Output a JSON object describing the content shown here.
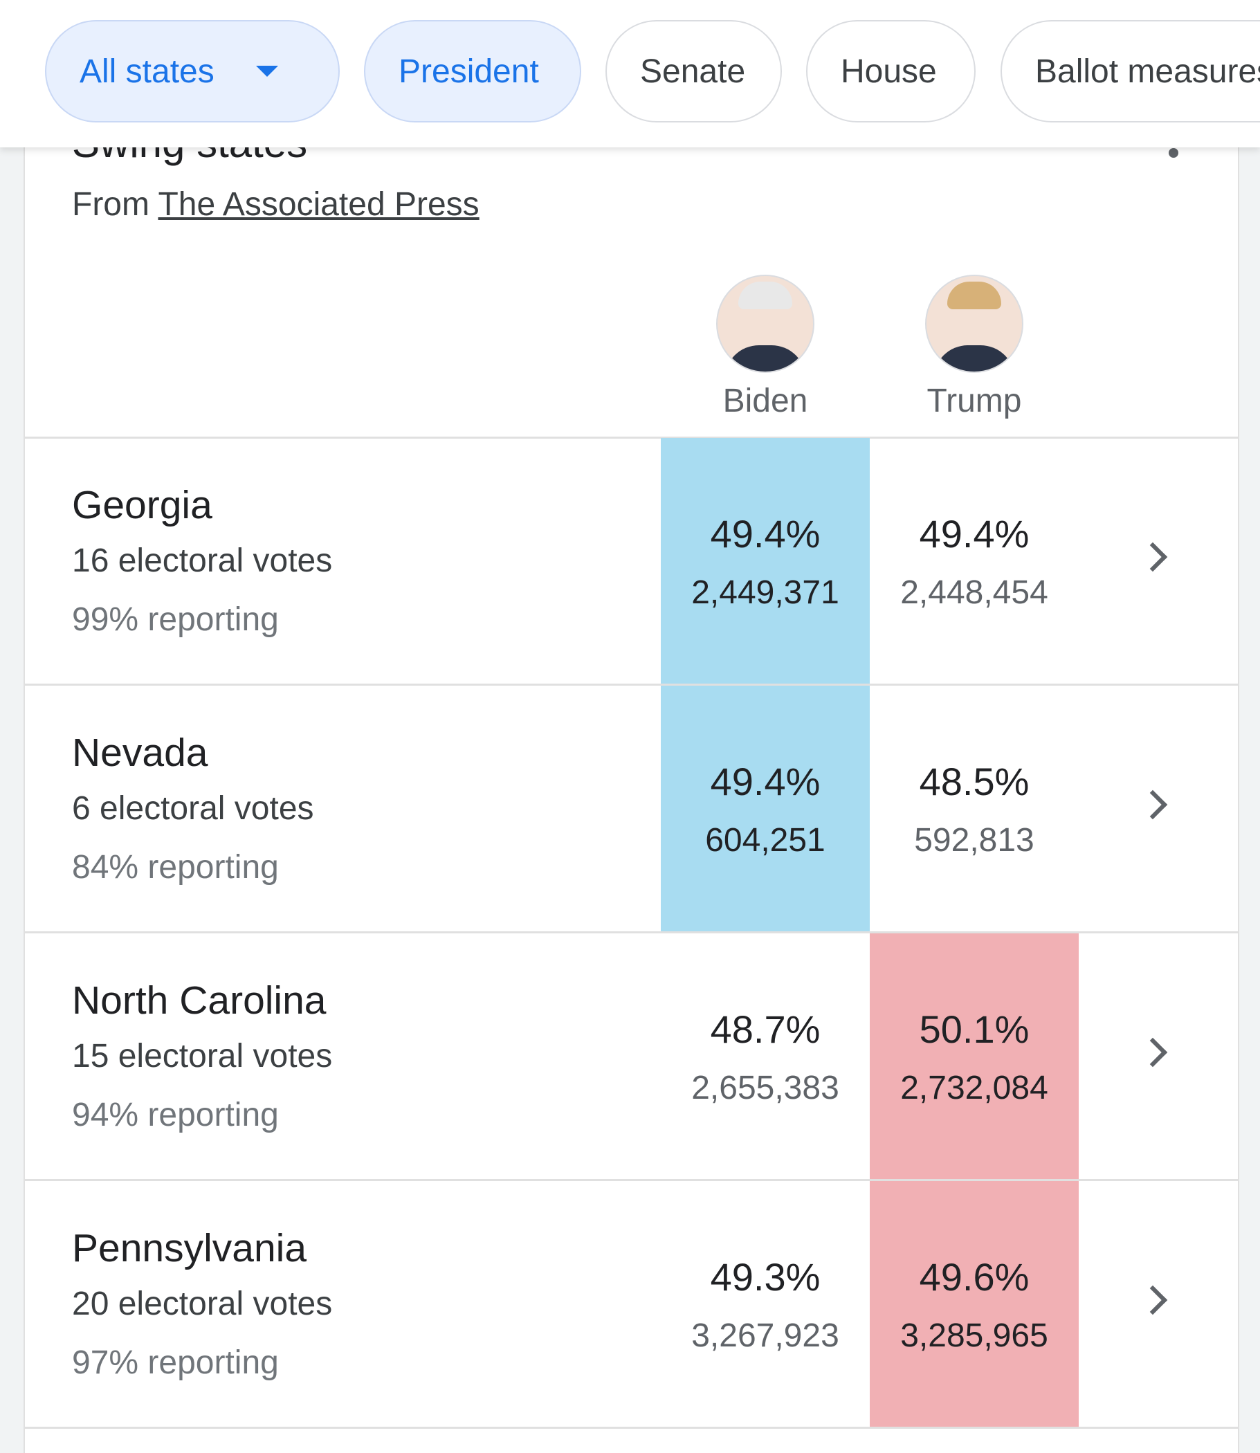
{
  "filters": {
    "chips": [
      {
        "label": "All states",
        "selected": true,
        "dropdown": true
      },
      {
        "label": "President",
        "selected": true
      },
      {
        "label": "Senate",
        "selected": false
      },
      {
        "label": "House",
        "selected": false
      },
      {
        "label": "Ballot measures",
        "selected": false
      }
    ]
  },
  "card": {
    "title": "Swing states",
    "source_prefix": "From",
    "source": "The Associated Press",
    "candidates": [
      {
        "name": "Biden",
        "color": "#a8dcf1"
      },
      {
        "name": "Trump",
        "color": "#f1b0b4"
      }
    ],
    "rows": [
      {
        "state": "Georgia",
        "electoral": "16 electoral votes",
        "reporting": "99% reporting",
        "leader": "Biden",
        "results": [
          {
            "pct": "49.4%",
            "votes": "2,449,371"
          },
          {
            "pct": "49.4%",
            "votes": "2,448,454"
          }
        ]
      },
      {
        "state": "Nevada",
        "electoral": "6 electoral votes",
        "reporting": "84% reporting",
        "leader": "Biden",
        "results": [
          {
            "pct": "49.4%",
            "votes": "604,251"
          },
          {
            "pct": "48.5%",
            "votes": "592,813"
          }
        ]
      },
      {
        "state": "North Carolina",
        "electoral": "15 electoral votes",
        "reporting": "94% reporting",
        "leader": "Trump",
        "results": [
          {
            "pct": "48.7%",
            "votes": "2,655,383"
          },
          {
            "pct": "50.1%",
            "votes": "2,732,084"
          }
        ]
      },
      {
        "state": "Pennsylvania",
        "electoral": "20 electoral votes",
        "reporting": "97% reporting",
        "leader": "Trump",
        "results": [
          {
            "pct": "49.3%",
            "votes": "3,267,923"
          },
          {
            "pct": "49.6%",
            "votes": "3,285,965"
          }
        ]
      }
    ]
  }
}
